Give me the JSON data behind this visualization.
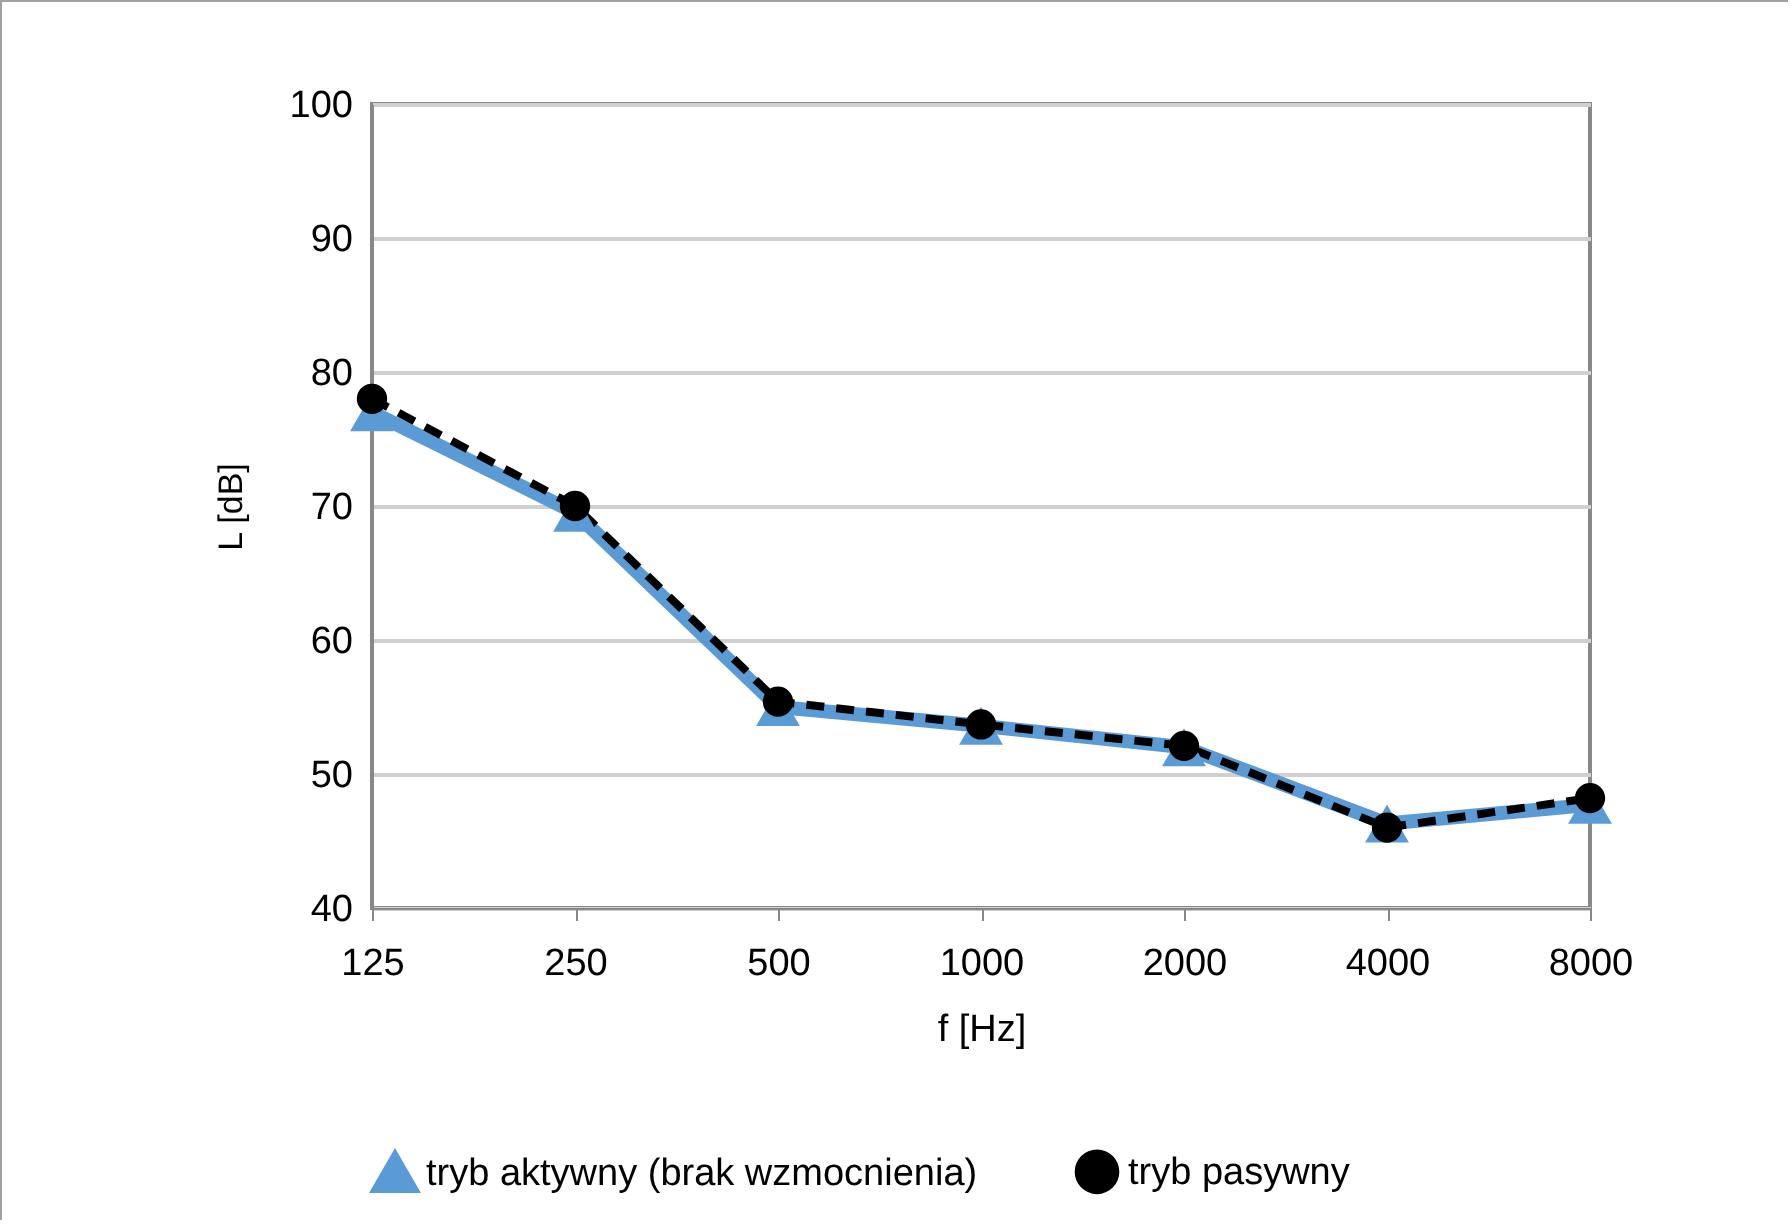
{
  "chart_data": {
    "type": "line",
    "xlabel": "f [Hz]",
    "ylabel": "L [dB]",
    "categories": [
      "125",
      "250",
      "500",
      "1000",
      "2000",
      "4000",
      "8000"
    ],
    "series": [
      {
        "name": "tryb aktywny (brak wzmocnienia)",
        "color": "#5b9bd5",
        "marker": "triangle",
        "line_style": "solid",
        "values": [
          77,
          69.5,
          55,
          53.6,
          52,
          46.3,
          47.7
        ]
      },
      {
        "name": "tryb pasywny",
        "color": "#000000",
        "marker": "circle",
        "line_style": "dashed",
        "values": [
          78,
          70,
          55.4,
          53.7,
          52.1,
          46,
          48.2
        ]
      }
    ],
    "ylim": [
      40,
      100
    ],
    "yticks": [
      40,
      50,
      60,
      70,
      80,
      90,
      100
    ],
    "grid": "y",
    "legend": "bottom"
  }
}
